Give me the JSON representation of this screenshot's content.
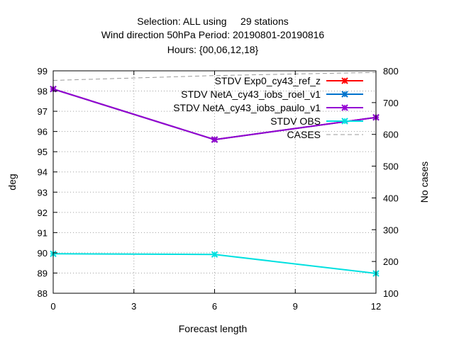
{
  "chart_data": {
    "type": "line",
    "title": [
      "Selection: ALL using     29 stations",
      "Wind direction 50hPa   Period: 20190801-20190816",
      "Hours: {00,06,12,18}"
    ],
    "xlabel": "Forecast length",
    "ylabel": "deg",
    "y2label": "No cases",
    "xlim": [
      0,
      12
    ],
    "xticks": [
      0,
      3,
      6,
      9,
      12
    ],
    "ylim": [
      88,
      99
    ],
    "yticks": [
      88,
      89,
      90,
      91,
      92,
      93,
      94,
      95,
      96,
      97,
      98,
      99
    ],
    "y2lim": [
      100,
      800
    ],
    "y2ticks": [
      100,
      200,
      300,
      400,
      500,
      600,
      700,
      800
    ],
    "grid": true,
    "legend_position": "top-right",
    "series": [
      {
        "name": "STDV Exp0_cy43_ref_z",
        "color": "#ff0000",
        "axis": "y1",
        "style": "solid",
        "marker": "x",
        "x": [
          0,
          6,
          12
        ],
        "values": [
          98.1,
          95.6,
          96.7
        ]
      },
      {
        "name": "STDV NetA_cy43_iobs_roel_v1",
        "color": "#0072cc",
        "axis": "y1",
        "style": "solid",
        "marker": "x",
        "x": [
          0,
          6,
          12
        ],
        "values": [
          98.1,
          95.6,
          96.7
        ]
      },
      {
        "name": "STDV NetA_cy43_iobs_paulo_v1",
        "color": "#9400d3",
        "axis": "y1",
        "style": "solid",
        "marker": "x",
        "x": [
          0,
          6,
          12
        ],
        "values": [
          98.1,
          95.6,
          96.7
        ]
      },
      {
        "name": "STDV OBS",
        "color": "#00e0e0",
        "axis": "y1",
        "style": "solid",
        "marker": "x",
        "x": [
          0,
          6,
          12
        ],
        "values": [
          89.95,
          89.92,
          88.98
        ]
      },
      {
        "name": "CASES",
        "color": "#999999",
        "axis": "y2",
        "style": "dashed",
        "marker": "none",
        "x": [
          0,
          6,
          12
        ],
        "values": [
          770,
          785,
          795
        ]
      }
    ]
  }
}
